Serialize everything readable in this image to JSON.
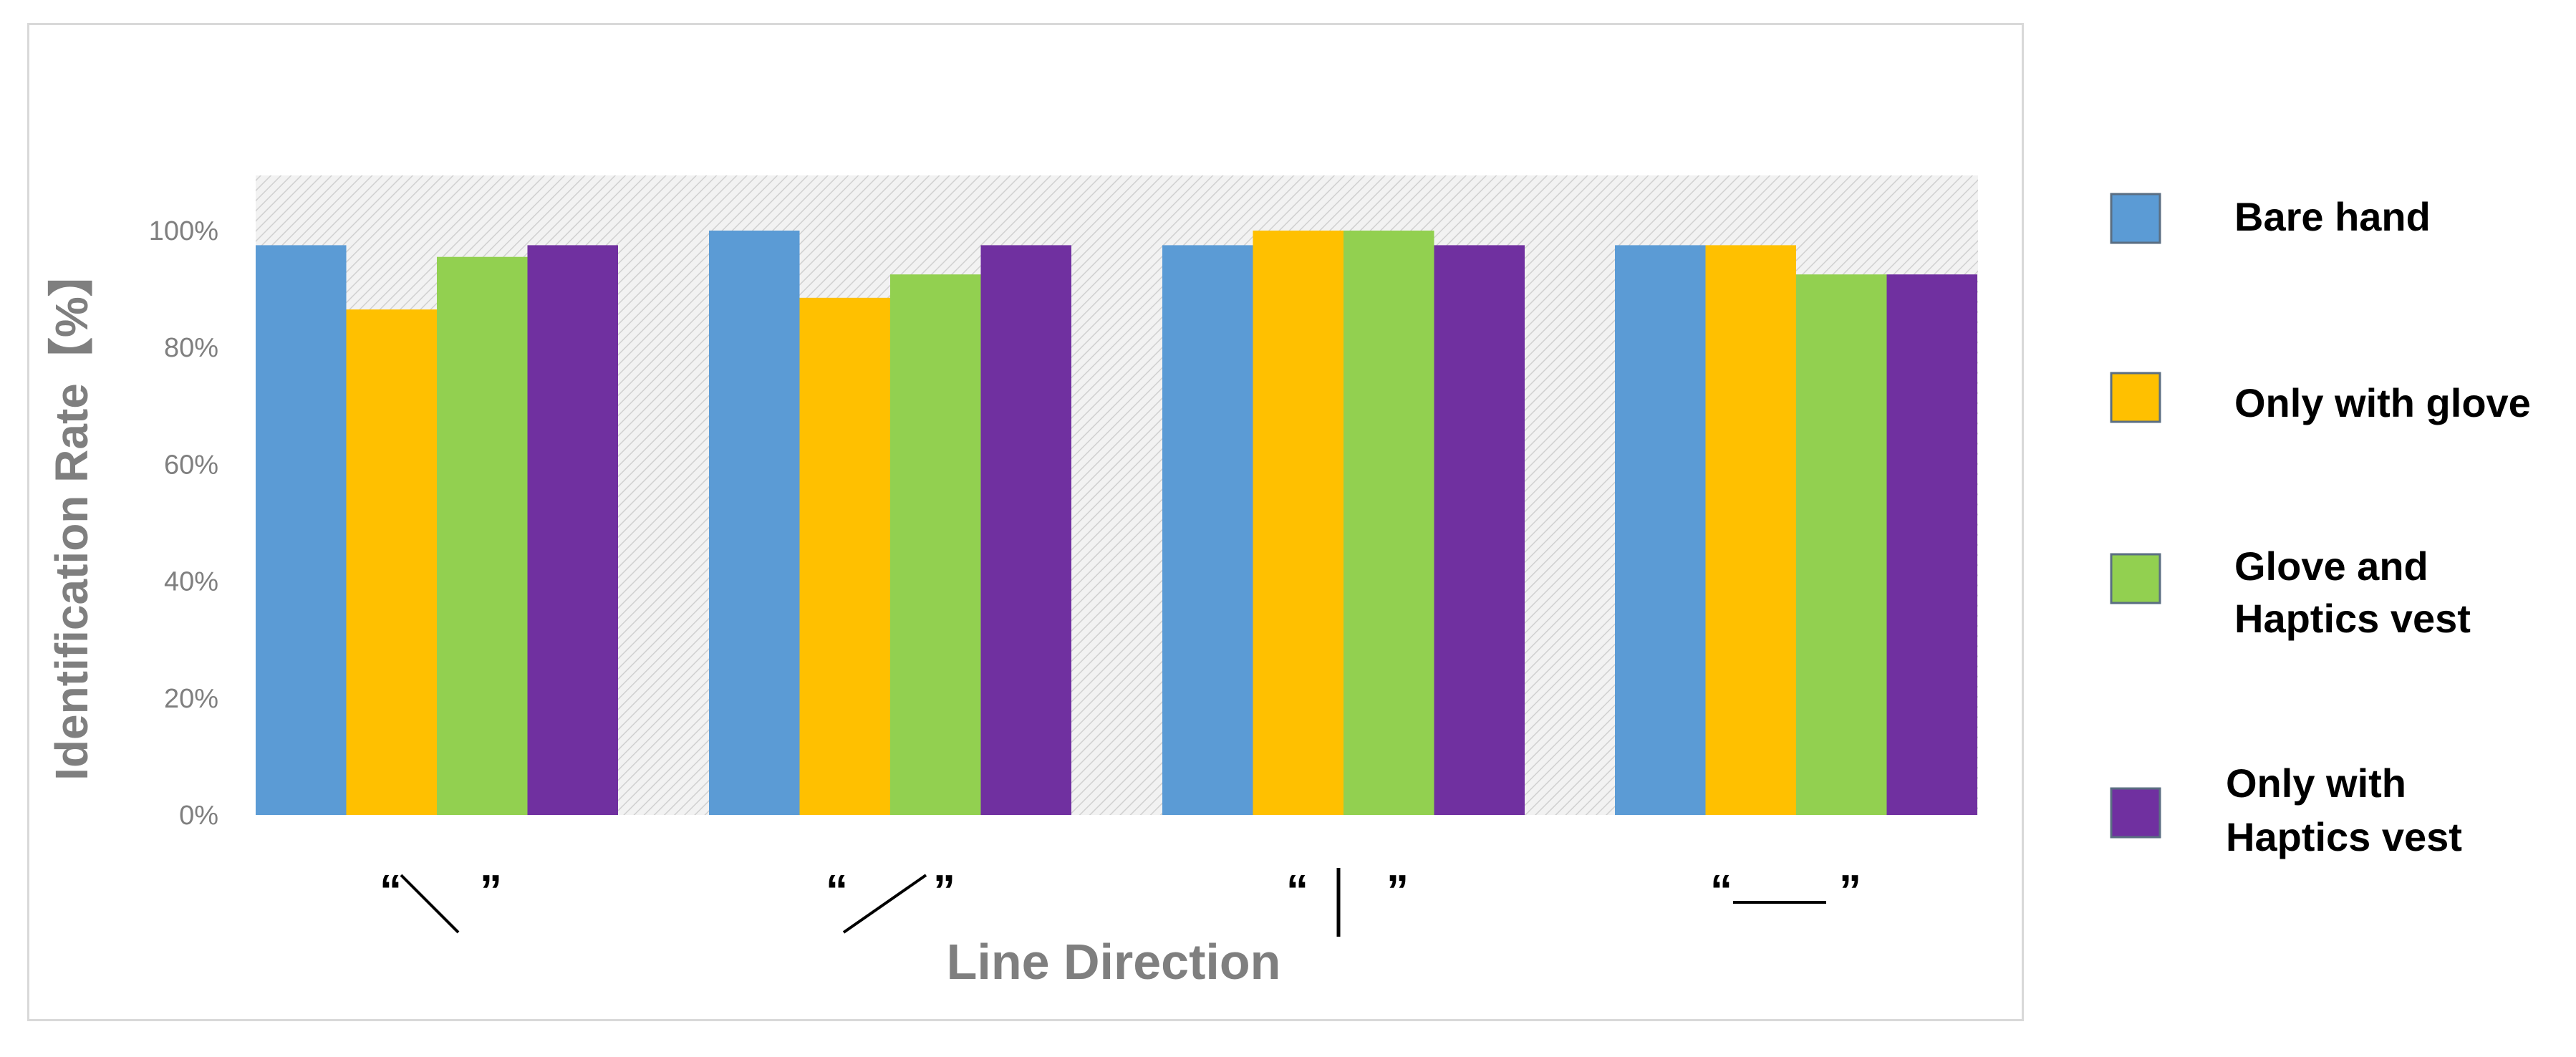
{
  "chart_data": {
    "type": "bar",
    "categories": [
      "“\\”",
      "“/”",
      "“|”",
      "“—”"
    ],
    "series": [
      {
        "name": "Bare hand",
        "values": [
          97.5,
          100,
          97.5,
          97.5
        ],
        "color": "#5b9bd5"
      },
      {
        "name": "Only with glove",
        "values": [
          86.5,
          88.5,
          100,
          97.5
        ],
        "color": "#ffc000"
      },
      {
        "name": "Glove and Haptics vest",
        "values": [
          95.5,
          92.5,
          100,
          92.5
        ],
        "color": "#92d050"
      },
      {
        "name": "Only with Haptics vest",
        "values": [
          97.5,
          97.5,
          97.5,
          92.5
        ],
        "color": "#7030a0"
      }
    ],
    "title": "",
    "xlabel": "Line Direction",
    "ylabel": "Identification Rate【%】",
    "ylim": [
      0,
      100
    ],
    "y_ticks": [
      "0%",
      "20%",
      "40%",
      "60%",
      "80%",
      "100%"
    ],
    "legend_position": "right",
    "legend_labels": [
      [
        "Bare hand"
      ],
      [
        "Only with glove"
      ],
      [
        "Glove and",
        "Haptics vest"
      ],
      [
        "Only with",
        "Haptics vest"
      ]
    ],
    "plot_background": "hatched light gray"
  }
}
